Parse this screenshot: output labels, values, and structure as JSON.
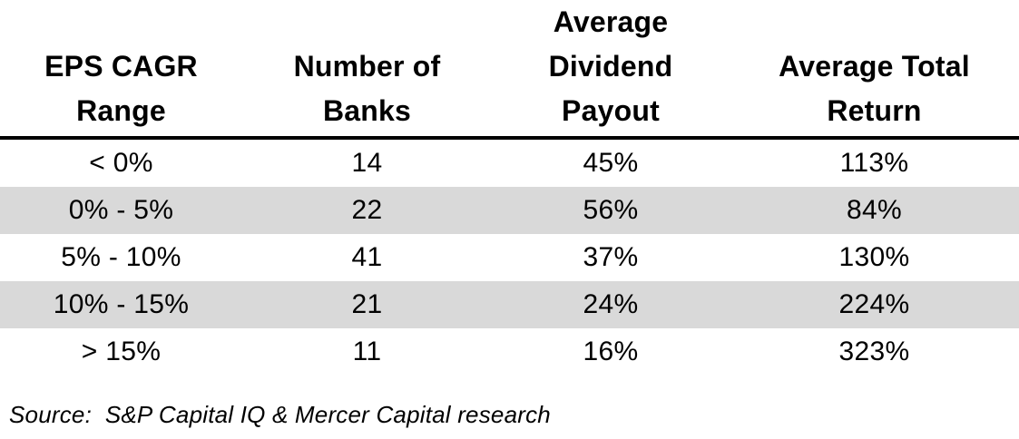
{
  "chart_data": {
    "type": "table",
    "columns": [
      "EPS CAGR\nRange",
      "Number of\nBanks",
      "Average\nDividend\nPayout",
      "Average Total\nReturn"
    ],
    "rows": [
      [
        "< 0%",
        "14",
        "45%",
        "113%"
      ],
      [
        "0% - 5%",
        "22",
        "56%",
        "84%"
      ],
      [
        "5% - 10%",
        "41",
        "37%",
        "130%"
      ],
      [
        "10% - 15%",
        "21",
        "24%",
        "224%"
      ],
      [
        "> 15%",
        "11",
        "16%",
        "323%"
      ]
    ],
    "shaded_rows": [
      1,
      3
    ],
    "shade_color": "#d9d9d9"
  },
  "source": "Source:  S&P Capital IQ & Mercer Capital research"
}
